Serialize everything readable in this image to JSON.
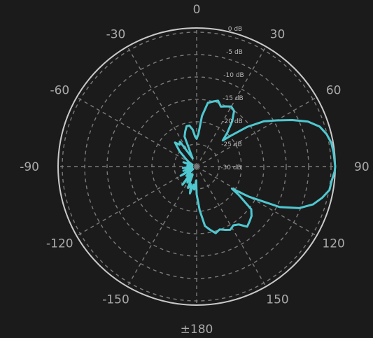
{
  "chart_data": {
    "type": "polar-line",
    "title": "",
    "angle_axis": {
      "unit": "degrees",
      "zero_direction": "top",
      "direction": "clockwise",
      "range": [
        -180,
        180
      ],
      "ticks": [
        0,
        30,
        60,
        90,
        120,
        150,
        180,
        -150,
        -120,
        -90,
        -60,
        -30
      ],
      "tick_labels": [
        "0",
        "30",
        "60",
        "90",
        "120",
        "150",
        "±180",
        "-150",
        "-120",
        "-90",
        "-60",
        "-30"
      ]
    },
    "radial_axis": {
      "unit": "dB",
      "range": [
        -30,
        0
      ],
      "ticks": [
        0,
        -5,
        -10,
        -15,
        -20,
        -25,
        -30
      ],
      "tick_labels": [
        "0 dB",
        "-5 dB",
        "-10 dB",
        "-15 dB",
        "-20 dB",
        "-25 dB",
        "-30 dB"
      ]
    },
    "grid": true,
    "series": [
      {
        "color": "#4fc8d0",
        "points": [
          [
            0,
            -24
          ],
          [
            3,
            -23
          ],
          [
            6,
            -19
          ],
          [
            10,
            -16
          ],
          [
            14,
            -15.5
          ],
          [
            18,
            -15
          ],
          [
            22,
            -16
          ],
          [
            26,
            -15.5
          ],
          [
            30,
            -15
          ],
          [
            34,
            -15.5
          ],
          [
            38,
            -17.5
          ],
          [
            42,
            -20
          ],
          [
            45,
            -22
          ],
          [
            48,
            -20
          ],
          [
            52,
            -16
          ],
          [
            56,
            -12.5
          ],
          [
            60,
            -10
          ],
          [
            64,
            -7
          ],
          [
            68,
            -4
          ],
          [
            72,
            -2
          ],
          [
            76,
            -1
          ],
          [
            80,
            -0.4
          ],
          [
            84,
            -0.2
          ],
          [
            88,
            -0.1
          ],
          [
            90,
            0
          ],
          [
            92,
            -0.1
          ],
          [
            96,
            -0.6
          ],
          [
            100,
            -0.8
          ],
          [
            104,
            -2
          ],
          [
            108,
            -3.5
          ],
          [
            112,
            -6
          ],
          [
            116,
            -10
          ],
          [
            120,
            -17
          ],
          [
            122,
            -21
          ],
          [
            124,
            -19
          ],
          [
            128,
            -15
          ],
          [
            132,
            -14
          ],
          [
            136,
            -13.5
          ],
          [
            140,
            -13
          ],
          [
            144,
            -14.5
          ],
          [
            148,
            -15
          ],
          [
            152,
            -14.5
          ],
          [
            156,
            -15
          ],
          [
            160,
            -15.5
          ],
          [
            164,
            -15
          ],
          [
            168,
            -16
          ],
          [
            172,
            -17
          ],
          [
            176,
            -20.5
          ],
          [
            180,
            -24
          ],
          [
            -178,
            -27
          ],
          [
            -174,
            -25
          ],
          [
            -170,
            -26
          ],
          [
            -166,
            -24
          ],
          [
            -162,
            -26
          ],
          [
            -158,
            -25
          ],
          [
            -154,
            -28
          ],
          [
            -150,
            -26
          ],
          [
            -146,
            -28
          ],
          [
            -142,
            -25
          ],
          [
            -138,
            -28
          ],
          [
            -132,
            -27
          ],
          [
            -126,
            -29
          ],
          [
            -120,
            -26
          ],
          [
            -114,
            -29
          ],
          [
            -108,
            -27
          ],
          [
            -102,
            -29
          ],
          [
            -96,
            -27
          ],
          [
            -90,
            -29
          ],
          [
            -84,
            -28
          ],
          [
            -78,
            -29
          ],
          [
            -72,
            -27
          ],
          [
            -66,
            -29
          ],
          [
            -60,
            -28
          ],
          [
            -54,
            -27
          ],
          [
            -48,
            -25
          ],
          [
            -42,
            -23
          ],
          [
            -38,
            -24
          ],
          [
            -34,
            -23.5
          ],
          [
            -30,
            -27
          ],
          [
            -26,
            -28
          ],
          [
            -22,
            -23
          ],
          [
            -18,
            -22
          ],
          [
            -14,
            -21
          ],
          [
            -10,
            -21
          ],
          [
            -6,
            -22
          ],
          [
            -3,
            -23.5
          ]
        ]
      }
    ]
  },
  "colors": {
    "background": "#1b1b1c",
    "outer_circle": "#c9c9c9",
    "grid": "#7b7b7b",
    "trace": "#4fc8d0",
    "angle_text": "#a9a9a9",
    "ring_text": "#b8b8b8"
  }
}
